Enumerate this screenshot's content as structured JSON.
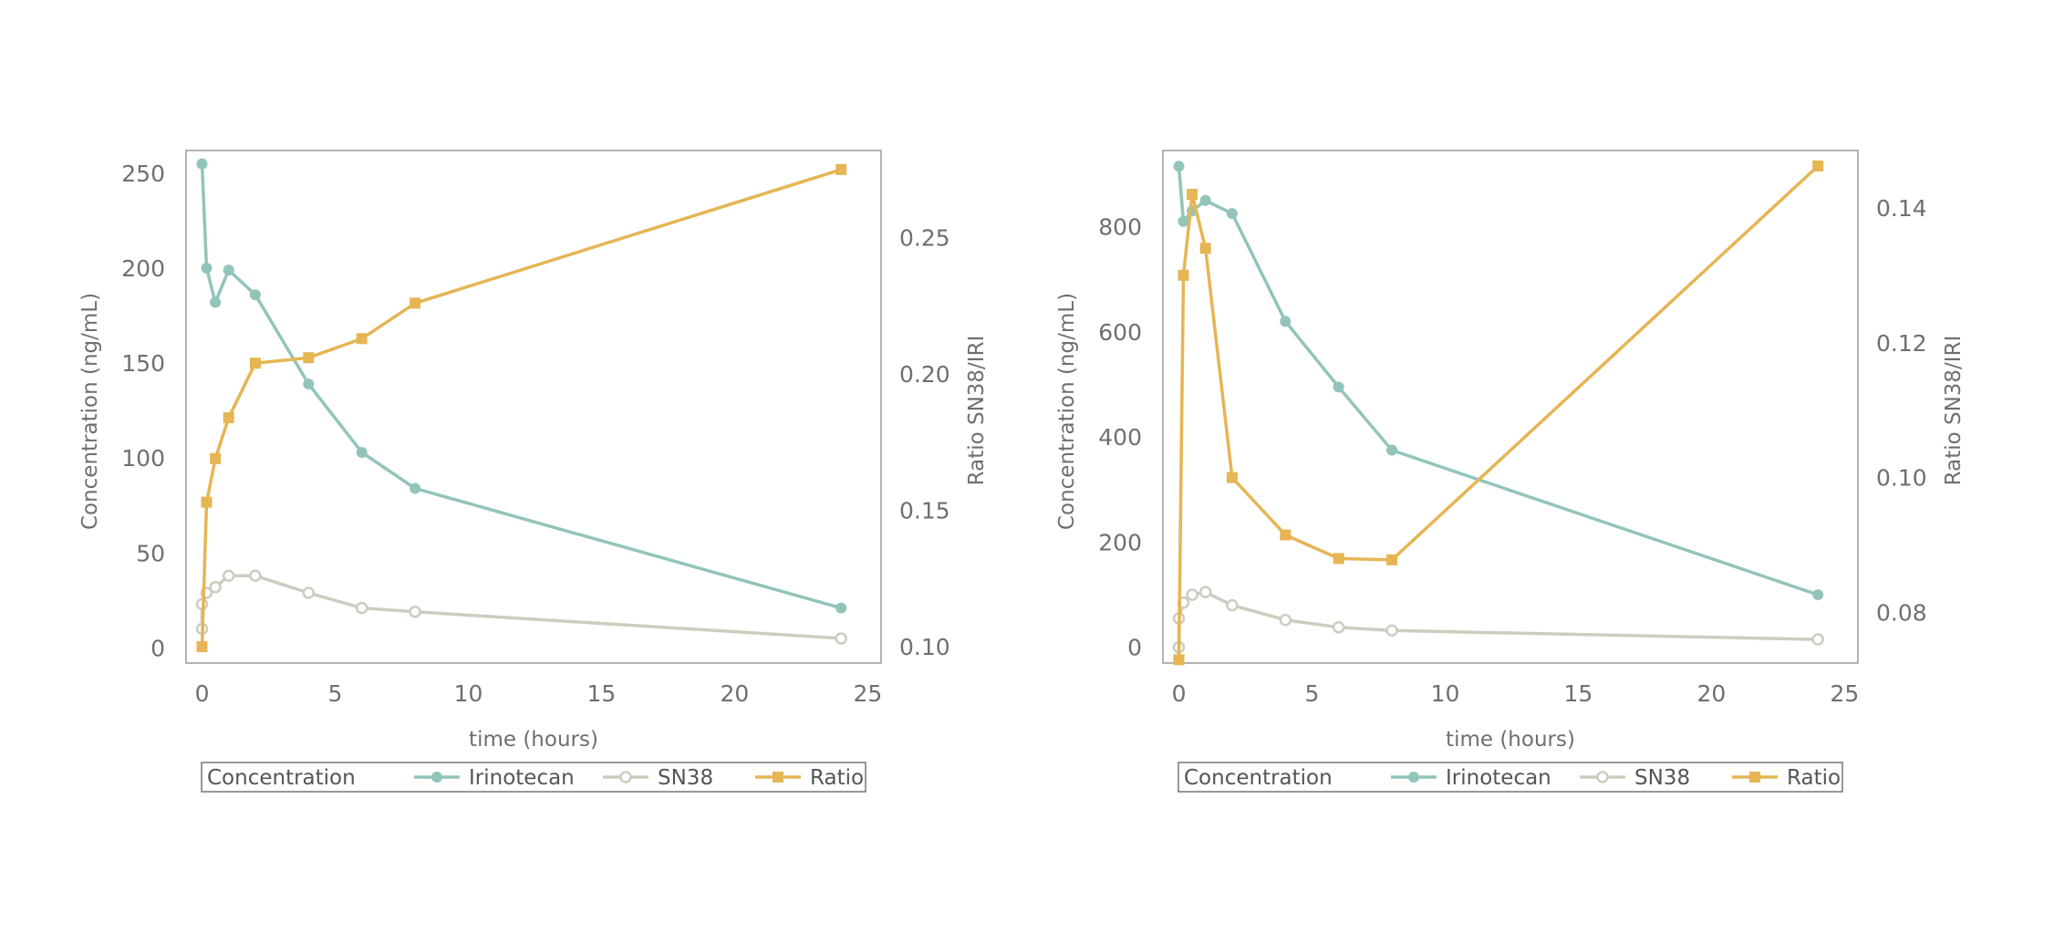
{
  "colors": {
    "irinotecan": "#92c4bb",
    "sn38": "#cbcdbf",
    "ratio": "#e6b554",
    "frame": "#9a9a9a"
  },
  "chart_data": [
    {
      "type": "line",
      "xlabel": "time (hours)",
      "ylabel": "Concentration (ng/mL)",
      "y2label": "Ratio SN38/IRI",
      "xlim": [
        -0.6,
        25.5
      ],
      "xticks": [
        0,
        5,
        10,
        15,
        20,
        25
      ],
      "ylim": [
        -8,
        262
      ],
      "yticks": [
        0,
        50,
        100,
        150,
        200,
        250
      ],
      "y2lim": [
        0.094,
        0.282
      ],
      "y2ticks": [
        "0.10",
        "0.15",
        "0.20",
        "0.25"
      ],
      "legend_title": "Concentration",
      "legend_position": "bottom",
      "series": [
        {
          "name": "Irinotecan",
          "axis": "left",
          "marker": "circle-filled",
          "x": [
            0,
            0.17,
            0.5,
            1,
            2,
            4,
            6,
            8,
            24
          ],
          "y": [
            255,
            200,
            182,
            199,
            186,
            139,
            103,
            84,
            21
          ]
        },
        {
          "name": "SN38",
          "axis": "left",
          "marker": "circle-open",
          "x": [
            0,
            0,
            0.17,
            0.5,
            1,
            2,
            4,
            6,
            8,
            24
          ],
          "y": [
            10,
            23,
            29,
            32,
            38,
            38,
            29,
            21,
            19,
            5
          ]
        },
        {
          "name": "Ratio",
          "axis": "right",
          "marker": "square",
          "x": [
            0,
            0.17,
            0.5,
            1,
            2,
            4,
            6,
            8,
            24
          ],
          "y": [
            0.1,
            0.153,
            0.169,
            0.184,
            0.204,
            0.206,
            0.213,
            0.226,
            0.275
          ]
        }
      ]
    },
    {
      "type": "line",
      "xlabel": "time (hours)",
      "ylabel": "Concentration (ng/mL)",
      "y2label": "Ratio SN38/IRI",
      "xlim": [
        -0.6,
        25.5
      ],
      "xticks": [
        0,
        5,
        10,
        15,
        20,
        25
      ],
      "ylim": [
        -30,
        945
      ],
      "yticks": [
        0,
        200,
        400,
        600,
        800
      ],
      "y2lim": [
        0.0725,
        0.1485
      ],
      "y2ticks": [
        "0.08",
        "0.10",
        "0.12",
        "0.14"
      ],
      "legend_title": "Concentration",
      "legend_position": "bottom",
      "series": [
        {
          "name": "Irinotecan",
          "axis": "left",
          "marker": "circle-filled",
          "x": [
            0,
            0.17,
            0.5,
            1,
            2,
            4,
            6,
            8,
            24
          ],
          "y": [
            915,
            810,
            830,
            850,
            825,
            620,
            495,
            375,
            100
          ]
        },
        {
          "name": "SN38",
          "axis": "left",
          "marker": "circle-open",
          "x": [
            0,
            0,
            0.17,
            0.5,
            1,
            2,
            4,
            6,
            8,
            24
          ],
          "y": [
            0,
            55,
            85,
            100,
            105,
            80,
            52,
            38,
            32,
            15
          ]
        },
        {
          "name": "Ratio",
          "axis": "right",
          "marker": "square",
          "x": [
            0,
            0.17,
            0.5,
            1,
            2,
            4,
            6,
            8,
            24
          ],
          "y": [
            0.073,
            0.13,
            0.142,
            0.134,
            0.1,
            0.0915,
            0.088,
            0.0878,
            0.1462
          ]
        }
      ]
    }
  ]
}
